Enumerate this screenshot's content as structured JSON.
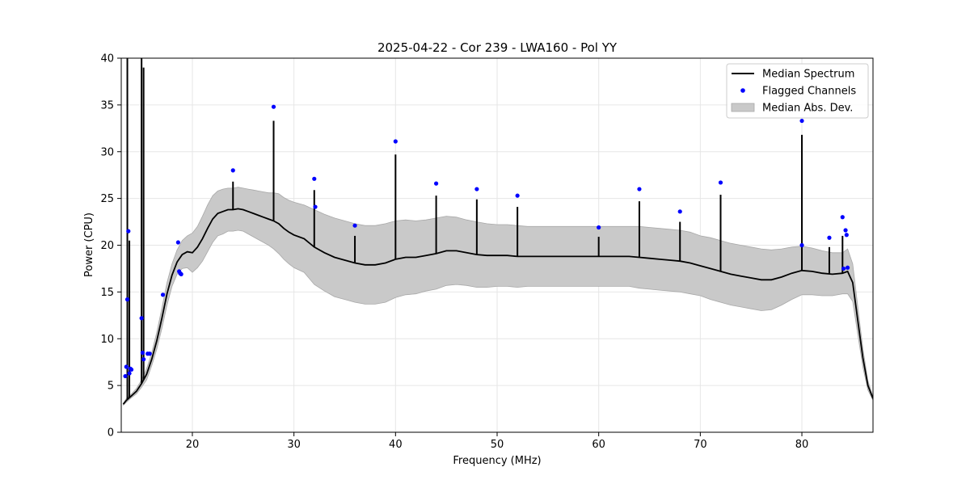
{
  "chart_data": {
    "type": "line",
    "title": "2025-04-22 - Cor 239 - LWA160 - Pol YY",
    "xlabel": "Frequency (MHz)",
    "ylabel": "Power (CPU)",
    "xlim": [
      13.0,
      87.0
    ],
    "ylim": [
      0,
      40
    ],
    "x_ticks": [
      20,
      30,
      40,
      50,
      60,
      70,
      80
    ],
    "x_tick_labels": [
      "20",
      "30",
      "40",
      "50",
      "60",
      "70",
      "80"
    ],
    "y_ticks": [
      0,
      5,
      10,
      15,
      20,
      25,
      30,
      35,
      40
    ],
    "y_tick_labels": [
      "0",
      "5",
      "10",
      "15",
      "20",
      "25",
      "30",
      "35",
      "40"
    ],
    "grid": true,
    "legend_position": "top-right",
    "legend": [
      {
        "label": "Median Spectrum",
        "kind": "line",
        "color": "#000000"
      },
      {
        "label": "Flagged Channels",
        "kind": "dot",
        "color": "#0000ff"
      },
      {
        "label": "Median Abs. Dev.",
        "kind": "band",
        "color": "#c9c9c9"
      }
    ],
    "series": [
      {
        "name": "Median Spectrum",
        "kind": "line",
        "color": "#000000",
        "x": [
          13.2,
          13.5,
          14.0,
          14.5,
          15.0,
          15.5,
          16.0,
          16.5,
          17.0,
          17.5,
          18.0,
          18.5,
          19.0,
          19.5,
          20.0,
          20.5,
          21.0,
          21.5,
          22.0,
          22.5,
          23.0,
          23.5,
          24.0,
          24.5,
          25.0,
          25.5,
          26.0,
          26.5,
          27.0,
          27.5,
          28.0,
          28.5,
          29.0,
          29.5,
          30.0,
          31.0,
          32.0,
          33.0,
          34.0,
          35.0,
          36.0,
          37.0,
          38.0,
          39.0,
          40.0,
          41.0,
          42.0,
          43.0,
          44.0,
          45.0,
          46.0,
          47.0,
          48.0,
          49.0,
          50.0,
          51.0,
          52.0,
          53.0,
          54.0,
          55.0,
          56.0,
          57.0,
          58.0,
          59.0,
          60.0,
          61.0,
          62.0,
          63.0,
          64.0,
          65.0,
          66.0,
          67.0,
          68.0,
          69.0,
          70.0,
          71.0,
          72.0,
          73.0,
          74.0,
          75.0,
          76.0,
          77.0,
          78.0,
          79.0,
          80.0,
          81.0,
          82.0,
          83.0,
          84.0,
          84.5,
          85.0,
          85.5,
          86.0,
          86.5,
          87.0
        ],
        "values": [
          3.0,
          3.4,
          3.9,
          4.4,
          5.2,
          6.2,
          7.8,
          9.8,
          12.2,
          14.8,
          16.8,
          18.2,
          19.0,
          19.3,
          19.2,
          19.8,
          20.7,
          21.8,
          22.8,
          23.4,
          23.6,
          23.8,
          23.8,
          23.9,
          23.8,
          23.6,
          23.4,
          23.2,
          23.0,
          22.8,
          22.6,
          22.3,
          21.8,
          21.4,
          21.1,
          20.7,
          19.8,
          19.2,
          18.7,
          18.4,
          18.1,
          17.9,
          17.9,
          18.1,
          18.5,
          18.7,
          18.7,
          18.9,
          19.1,
          19.4,
          19.4,
          19.2,
          19.0,
          18.9,
          18.9,
          18.9,
          18.8,
          18.8,
          18.8,
          18.8,
          18.8,
          18.8,
          18.8,
          18.8,
          18.8,
          18.8,
          18.8,
          18.8,
          18.7,
          18.6,
          18.5,
          18.4,
          18.3,
          18.1,
          17.8,
          17.5,
          17.2,
          16.9,
          16.7,
          16.5,
          16.3,
          16.3,
          16.6,
          17.0,
          17.3,
          17.2,
          17.0,
          16.9,
          17.0,
          17.2,
          16.0,
          12.0,
          8.0,
          5.0,
          3.6
        ]
      },
      {
        "name": "Median Abs. Dev.",
        "kind": "band",
        "color": "#c9c9c9",
        "x": [
          13.2,
          13.5,
          14.0,
          14.5,
          15.0,
          15.5,
          16.0,
          16.5,
          17.0,
          17.5,
          18.0,
          18.5,
          19.0,
          19.5,
          20.0,
          20.5,
          21.0,
          21.5,
          22.0,
          22.5,
          23.0,
          23.5,
          24.0,
          24.5,
          25.0,
          25.5,
          26.0,
          26.5,
          27.0,
          27.5,
          28.0,
          28.5,
          29.0,
          29.5,
          30.0,
          31.0,
          32.0,
          33.0,
          34.0,
          35.0,
          36.0,
          37.0,
          38.0,
          39.0,
          40.0,
          41.0,
          42.0,
          43.0,
          44.0,
          45.0,
          46.0,
          47.0,
          48.0,
          49.0,
          50.0,
          51.0,
          52.0,
          53.0,
          54.0,
          55.0,
          56.0,
          57.0,
          58.0,
          59.0,
          60.0,
          61.0,
          62.0,
          63.0,
          64.0,
          65.0,
          66.0,
          67.0,
          68.0,
          69.0,
          70.0,
          71.0,
          72.0,
          73.0,
          74.0,
          75.0,
          76.0,
          77.0,
          78.0,
          79.0,
          80.0,
          81.0,
          82.0,
          83.0,
          84.0,
          84.5,
          85.0,
          85.5,
          86.0,
          86.5,
          87.0
        ],
        "upper": [
          3.1,
          3.6,
          4.1,
          4.7,
          5.6,
          6.8,
          8.5,
          10.7,
          13.3,
          16.0,
          18.0,
          19.5,
          20.5,
          21.0,
          21.3,
          22.0,
          23.1,
          24.3,
          25.3,
          25.8,
          26.0,
          26.1,
          26.1,
          26.2,
          26.1,
          26.0,
          25.9,
          25.8,
          25.7,
          25.6,
          25.6,
          25.5,
          25.1,
          24.8,
          24.6,
          24.3,
          23.8,
          23.3,
          22.9,
          22.6,
          22.3,
          22.1,
          22.1,
          22.3,
          22.6,
          22.7,
          22.6,
          22.7,
          22.9,
          23.1,
          23.0,
          22.7,
          22.5,
          22.3,
          22.2,
          22.2,
          22.1,
          22.0,
          22.0,
          22.0,
          22.0,
          22.0,
          22.0,
          22.0,
          22.0,
          22.0,
          22.0,
          22.0,
          22.0,
          21.9,
          21.8,
          21.7,
          21.6,
          21.4,
          21.0,
          20.8,
          20.5,
          20.2,
          20.0,
          19.8,
          19.6,
          19.5,
          19.6,
          19.8,
          19.9,
          19.7,
          19.4,
          19.2,
          19.2,
          19.6,
          18.0,
          13.5,
          9.0,
          5.5,
          3.8
        ],
        "lower": [
          2.9,
          3.2,
          3.7,
          4.1,
          4.8,
          5.6,
          7.1,
          8.9,
          11.1,
          13.6,
          15.6,
          16.9,
          17.5,
          17.6,
          17.1,
          17.6,
          18.3,
          19.3,
          20.3,
          21.0,
          21.2,
          21.5,
          21.5,
          21.6,
          21.5,
          21.2,
          20.9,
          20.6,
          20.3,
          20.0,
          19.6,
          19.1,
          18.5,
          18.0,
          17.6,
          17.1,
          15.8,
          15.1,
          14.5,
          14.2,
          13.9,
          13.7,
          13.7,
          13.9,
          14.4,
          14.7,
          14.8,
          15.1,
          15.3,
          15.7,
          15.8,
          15.7,
          15.5,
          15.5,
          15.6,
          15.6,
          15.5,
          15.6,
          15.6,
          15.6,
          15.6,
          15.6,
          15.6,
          15.6,
          15.6,
          15.6,
          15.6,
          15.6,
          15.4,
          15.3,
          15.2,
          15.1,
          15.0,
          14.8,
          14.6,
          14.2,
          13.9,
          13.6,
          13.4,
          13.2,
          13.0,
          13.1,
          13.6,
          14.2,
          14.7,
          14.7,
          14.6,
          14.6,
          14.8,
          14.8,
          14.0,
          10.5,
          7.0,
          4.5,
          3.4
        ]
      },
      {
        "name": "Flagged Channels",
        "kind": "scatter",
        "color": "#0000ff",
        "x": [
          13.4,
          13.5,
          13.6,
          13.7,
          13.8,
          13.9,
          14.0,
          15.0,
          15.1,
          15.2,
          15.6,
          15.8,
          17.1,
          18.6,
          18.7,
          18.8,
          18.9,
          24.0,
          28.0,
          32.0,
          32.1,
          36.0,
          40.0,
          44.0,
          48.0,
          52.0,
          60.0,
          64.0,
          68.0,
          72.0,
          80.0,
          80.0,
          82.7,
          84.0,
          84.1,
          84.3,
          84.4,
          84.5
        ],
        "values": [
          6.0,
          7.0,
          14.2,
          21.5,
          6.3,
          6.8,
          6.7,
          12.2,
          8.5,
          7.8,
          8.4,
          8.4,
          14.7,
          20.3,
          17.2,
          17.0,
          16.9,
          28.0,
          34.8,
          27.1,
          24.1,
          22.1,
          31.1,
          26.6,
          26.0,
          25.3,
          21.9,
          26.0,
          23.6,
          26.7,
          33.3,
          20.0,
          20.8,
          23.0,
          17.5,
          21.6,
          21.1,
          17.6
        ]
      },
      {
        "name": "RFI spikes",
        "kind": "spikes",
        "color": "#000000",
        "x": [
          13.6,
          13.8,
          15.0,
          15.2,
          24.0,
          28.0,
          32.0,
          36.0,
          40.0,
          44.0,
          48.0,
          52.0,
          60.0,
          64.0,
          68.0,
          72.0,
          80.0,
          82.7,
          84.0
        ],
        "values": [
          40.0,
          20.5,
          40.0,
          39.0,
          26.8,
          33.3,
          25.9,
          21.0,
          29.7,
          25.3,
          24.9,
          24.1,
          20.9,
          24.7,
          22.5,
          25.4,
          31.8,
          19.8,
          21.0
        ]
      }
    ]
  }
}
